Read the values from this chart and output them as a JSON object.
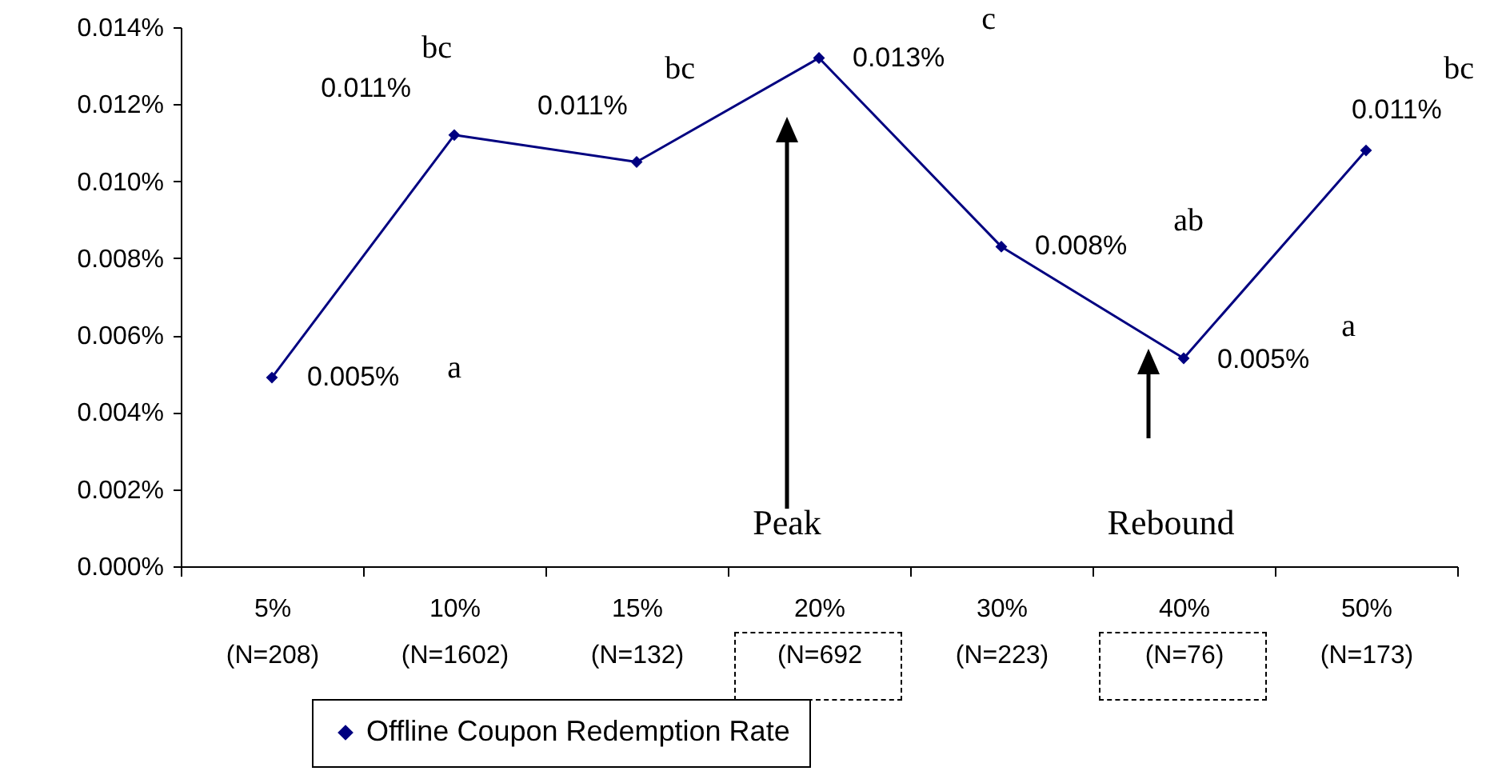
{
  "chart_data": {
    "type": "line",
    "categories": [
      "5%\n(N=208)",
      "10%\n(N=1602)",
      "15%\n(N=132)",
      "20%\n(N=692",
      "30%\n(N=223)",
      "40%\n(N=76)",
      "50%\n(N=173)"
    ],
    "series": [
      {
        "name": "Offline Coupon Redemption Rate",
        "color": "#000080",
        "values": [
          0.0049,
          0.0112,
          0.0105,
          0.0132,
          0.0083,
          0.0054,
          0.0108
        ]
      }
    ],
    "value_labels": [
      "0.005%",
      "0.011%",
      "0.011%",
      "0.013%",
      "0.008%",
      "0.005%",
      "0.011%"
    ],
    "ylim": [
      0,
      0.014
    ],
    "yticks": [
      {
        "value": 0,
        "label": "0.000%"
      },
      {
        "value": 0.002,
        "label": "0.002%"
      },
      {
        "value": 0.004,
        "label": "0.004%"
      },
      {
        "value": 0.006,
        "label": "0.006%"
      },
      {
        "value": 0.008,
        "label": "0.008%"
      },
      {
        "value": 0.01,
        "label": "0.010%"
      },
      {
        "value": 0.012,
        "label": "0.012%"
      },
      {
        "value": 0.014,
        "label": "0.014%"
      }
    ],
    "annotations": [
      "a",
      "bc",
      "bc",
      "c",
      "ab",
      "a",
      "bc",
      "Peak",
      "Rebound"
    ],
    "marker": "diamond",
    "line_style": "solid",
    "grid": false,
    "legend": "bottom"
  }
}
